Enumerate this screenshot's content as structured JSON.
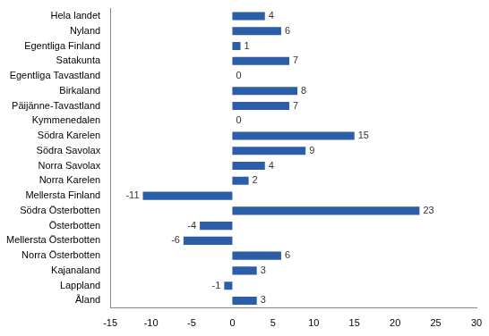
{
  "chart_data": {
    "type": "bar",
    "orientation": "horizontal",
    "categories": [
      "Hela landet",
      "Nyland",
      "Egentliga Finland",
      "Satakunta",
      "Egentliga Tavastland",
      "Birkaland",
      "Päijänne-Tavastland",
      "Kymmenedalen",
      "Södra Karelen",
      "Södra Savolax",
      "Norra Savolax",
      "Norra Karelen",
      "Mellersta Finland",
      "Södra Österbotten",
      "Österbotten",
      "Mellersta Österbotten",
      "Norra Österbotten",
      "Kajanaland",
      "Lappland",
      "Åland"
    ],
    "values": [
      4,
      6,
      1,
      7,
      0,
      8,
      7,
      0,
      15,
      9,
      4,
      2,
      -11,
      23,
      -4,
      -6,
      6,
      3,
      -1,
      3
    ],
    "color": "#2b5ea7",
    "xlim": [
      -15,
      30
    ],
    "xticks": [
      -15,
      -10,
      -5,
      0,
      5,
      10,
      15,
      20,
      25,
      30
    ],
    "grid": false,
    "data_labels": true
  }
}
